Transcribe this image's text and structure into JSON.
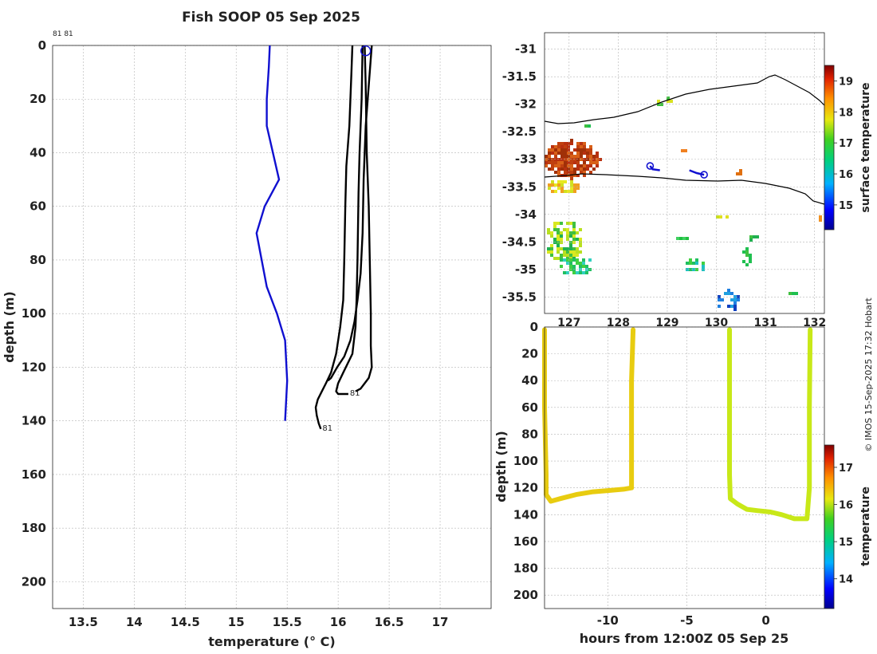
{
  "figure": {
    "title": "Fish SOOP 05 Sep 2025",
    "credit": "© IMOS 15-Sep-2025 17:32 Hobart"
  },
  "chart_data": [
    {
      "type": "line",
      "panel": "temperature profiles",
      "xlabel": "temperature (° C)",
      "ylabel": "depth (m)",
      "xlim": [
        13.2,
        17.5
      ],
      "ylim": [
        210,
        0
      ],
      "xticks": [
        "13.5",
        "14",
        "14.5",
        "15",
        "15.5",
        "16",
        "16.5",
        "17"
      ],
      "yticks": [
        "0",
        "20",
        "40",
        "60",
        "80",
        "100",
        "120",
        "140",
        "160",
        "180",
        "200"
      ],
      "top_left_label": "81 81",
      "reference_profile": {
        "color": "#1010d0",
        "points": [
          [
            15.33,
            0
          ],
          [
            15.32,
            8
          ],
          [
            15.3,
            20
          ],
          [
            15.3,
            30
          ],
          [
            15.42,
            50
          ],
          [
            15.28,
            60
          ],
          [
            15.2,
            70
          ],
          [
            15.25,
            80
          ],
          [
            15.3,
            90
          ],
          [
            15.4,
            100
          ],
          [
            15.48,
            110
          ],
          [
            15.5,
            125
          ],
          [
            15.48,
            140
          ]
        ]
      },
      "casts": [
        {
          "color": "#000000",
          "end_label": "81",
          "points": [
            [
              16.14,
              0
            ],
            [
              16.13,
              10
            ],
            [
              16.11,
              30
            ],
            [
              16.08,
              45
            ],
            [
              16.07,
              60
            ],
            [
              16.06,
              80
            ],
            [
              16.05,
              95
            ],
            [
              16.02,
              105
            ],
            [
              15.98,
              115
            ],
            [
              15.93,
              122
            ],
            [
              15.88,
              126
            ],
            [
              15.84,
              129
            ],
            [
              15.8,
              132
            ],
            [
              15.78,
              135
            ],
            [
              15.79,
              138
            ],
            [
              15.81,
              141
            ],
            [
              15.83,
              143
            ]
          ]
        },
        {
          "color": "#000000",
          "end_label": "81",
          "points": [
            [
              16.24,
              0
            ],
            [
              16.23,
              20
            ],
            [
              16.21,
              40
            ],
            [
              16.2,
              55
            ],
            [
              16.19,
              80
            ],
            [
              16.18,
              95
            ],
            [
              16.17,
              105
            ],
            [
              16.14,
              115
            ],
            [
              16.05,
              122
            ],
            [
              16.0,
              126
            ],
            [
              15.98,
              129
            ],
            [
              16.0,
              130
            ],
            [
              16.05,
              130
            ],
            [
              16.1,
              130
            ]
          ]
        },
        {
          "color": "#000000",
          "end_label": "",
          "points": [
            [
              16.26,
              0
            ],
            [
              16.27,
              15
            ],
            [
              16.28,
              40
            ],
            [
              16.3,
              60
            ],
            [
              16.31,
              80
            ],
            [
              16.32,
              100
            ],
            [
              16.32,
              112
            ],
            [
              16.33,
              120
            ],
            [
              16.3,
              124
            ],
            [
              16.26,
              126
            ],
            [
              16.22,
              128
            ],
            [
              16.17,
              129
            ]
          ]
        },
        {
          "color": "#000000",
          "end_label": "",
          "points": [
            [
              16.33,
              0
            ],
            [
              16.3,
              15
            ],
            [
              16.27,
              30
            ],
            [
              16.25,
              50
            ],
            [
              16.24,
              70
            ],
            [
              16.22,
              85
            ],
            [
              16.19,
              95
            ],
            [
              16.16,
              103
            ],
            [
              16.12,
              110
            ],
            [
              16.06,
              116
            ],
            [
              15.99,
              120
            ],
            [
              15.93,
              124
            ],
            [
              15.9,
              125
            ]
          ]
        }
      ],
      "marker": {
        "x": 16.27,
        "y": 2,
        "color": "#1010d0"
      }
    },
    {
      "type": "heatmap",
      "panel": "surface temperature map",
      "xticks": [
        "127",
        "128",
        "129",
        "130",
        "131",
        "132"
      ],
      "yticks": [
        "-31",
        "-31.5",
        "-32",
        "-32.5",
        "-33",
        "-33.5",
        "-34",
        "-34.5",
        "-35",
        "-35.5"
      ],
      "xlim": [
        126.5,
        132.2
      ],
      "ylim": [
        -35.8,
        -30.7
      ],
      "colorbar": {
        "label": "surface temperature",
        "ticks": [
          "15",
          "16",
          "17",
          "18",
          "19"
        ],
        "range": [
          14.2,
          19.5
        ]
      },
      "tracks": [
        {
          "color": "#1010d0",
          "points": [
            [
              128.65,
              -33.12
            ],
            [
              128.7,
              -33.18
            ],
            [
              128.85,
              -33.2
            ]
          ]
        },
        {
          "color": "#1010d0",
          "points": [
            [
              129.45,
              -33.2
            ],
            [
              129.6,
              -33.25
            ],
            [
              129.75,
              -33.28
            ]
          ]
        }
      ],
      "track_markers": [
        [
          128.65,
          -33.12
        ],
        [
          129.75,
          -33.28
        ]
      ]
    },
    {
      "type": "scatter",
      "panel": "temperature section",
      "xlabel": "hours from 12:00Z 05 Sep 25",
      "ylabel": "depth (m)",
      "xlim": [
        -14,
        3.7
      ],
      "ylim": [
        210,
        0
      ],
      "xticks": [
        "-10",
        "-5",
        "0"
      ],
      "yticks": [
        "0",
        "20",
        "40",
        "60",
        "80",
        "100",
        "120",
        "140",
        "160",
        "180",
        "200"
      ],
      "colorbar": {
        "label": "temperature",
        "ticks": [
          "14",
          "15",
          "16",
          "17"
        ],
        "range": [
          13.2,
          17.6
        ]
      },
      "series": [
        {
          "name": "",
          "color": "#e8cc10",
          "points": [
            [
              -14.0,
              2
            ],
            [
              -14.0,
              60
            ],
            [
              -13.9,
              110
            ],
            [
              -13.9,
              125
            ],
            [
              -13.6,
              130
            ],
            [
              -13,
              128
            ],
            [
              -12,
              125
            ],
            [
              -11,
              123
            ],
            [
              -10,
              122
            ],
            [
              -9,
              121
            ],
            [
              -8.5,
              120
            ],
            [
              -8.5,
              100
            ],
            [
              -8.5,
              40
            ],
            [
              -8.4,
              2
            ]
          ]
        },
        {
          "name": "",
          "color": "#c8e818",
          "points": [
            [
              -2.3,
              2
            ],
            [
              -2.3,
              60
            ],
            [
              -2.3,
              110
            ],
            [
              -2.25,
              128
            ],
            [
              -1.8,
              132
            ],
            [
              -1.2,
              136
            ],
            [
              -0.5,
              137
            ],
            [
              0.3,
              138
            ],
            [
              1,
              140
            ],
            [
              1.8,
              143
            ],
            [
              2.6,
              143
            ],
            [
              2.75,
              120
            ],
            [
              2.75,
              60
            ],
            [
              2.8,
              2
            ]
          ]
        }
      ]
    }
  ]
}
